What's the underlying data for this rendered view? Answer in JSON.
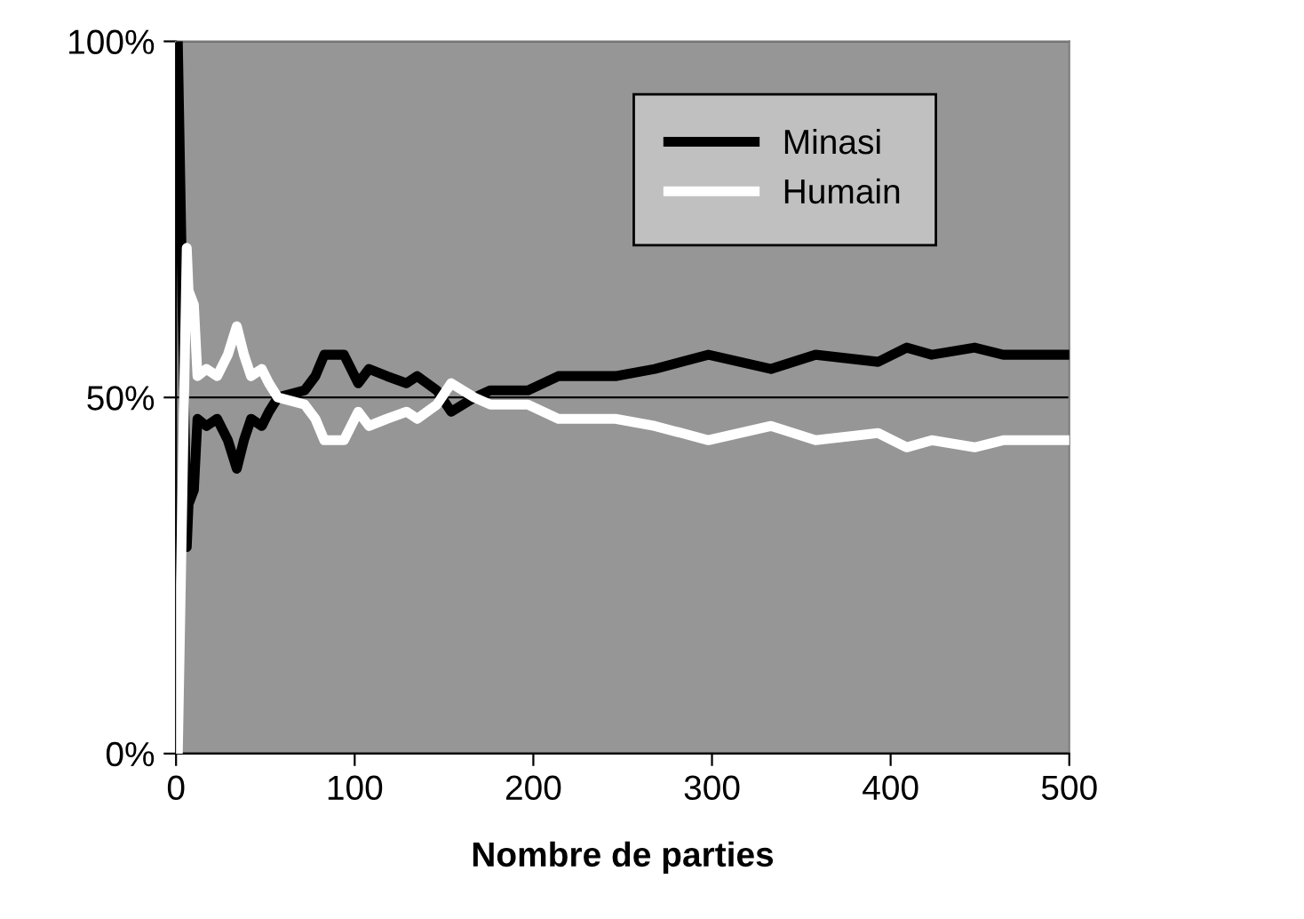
{
  "chart_data": {
    "type": "line",
    "xlabel": "Nombre de parties",
    "xlim": [
      0,
      500
    ],
    "xticks": [
      0,
      100,
      200,
      300,
      400,
      500
    ],
    "ylim": [
      0,
      100
    ],
    "yticks": [
      {
        "value": 0,
        "label": "0%"
      },
      {
        "value": 50,
        "label": "50%"
      },
      {
        "value": 100,
        "label": "100%"
      }
    ],
    "grid": "y",
    "legend": "top right",
    "marker": "none",
    "line_style": "solid",
    "series": [
      {
        "name": "Minasi",
        "color": "#000000",
        "x": [
          1,
          6,
          7,
          10,
          12,
          17,
          23,
          29,
          34,
          38,
          42,
          48,
          52,
          57,
          72,
          78,
          83,
          94,
          102,
          108,
          118,
          129,
          135,
          146,
          154,
          167,
          176,
          197,
          214,
          246,
          268,
          298,
          333,
          358,
          393,
          409,
          423,
          447,
          463,
          480,
          500
        ],
        "values": [
          100,
          29,
          35,
          37,
          47,
          46,
          47,
          44,
          40,
          44,
          47,
          46,
          48,
          50,
          51,
          53,
          56,
          56,
          52,
          54,
          53,
          52,
          53,
          51,
          48,
          50,
          51,
          51,
          53,
          53,
          54,
          56,
          54,
          56,
          55,
          57,
          56,
          57,
          56,
          56,
          56
        ]
      },
      {
        "name": "Humain",
        "color": "#ffffff",
        "x": [
          1,
          6,
          7,
          10,
          12,
          17,
          23,
          29,
          34,
          38,
          42,
          48,
          52,
          57,
          72,
          78,
          83,
          94,
          102,
          108,
          118,
          129,
          135,
          146,
          154,
          167,
          176,
          197,
          214,
          246,
          268,
          298,
          333,
          358,
          393,
          409,
          423,
          447,
          463,
          480,
          500
        ],
        "values": [
          0,
          71,
          65,
          63,
          53,
          54,
          53,
          56,
          60,
          56,
          53,
          54,
          52,
          50,
          49,
          47,
          44,
          44,
          48,
          46,
          47,
          48,
          47,
          49,
          52,
          50,
          49,
          49,
          47,
          47,
          46,
          44,
          46,
          44,
          45,
          43,
          44,
          43,
          44,
          44,
          44
        ]
      }
    ]
  }
}
